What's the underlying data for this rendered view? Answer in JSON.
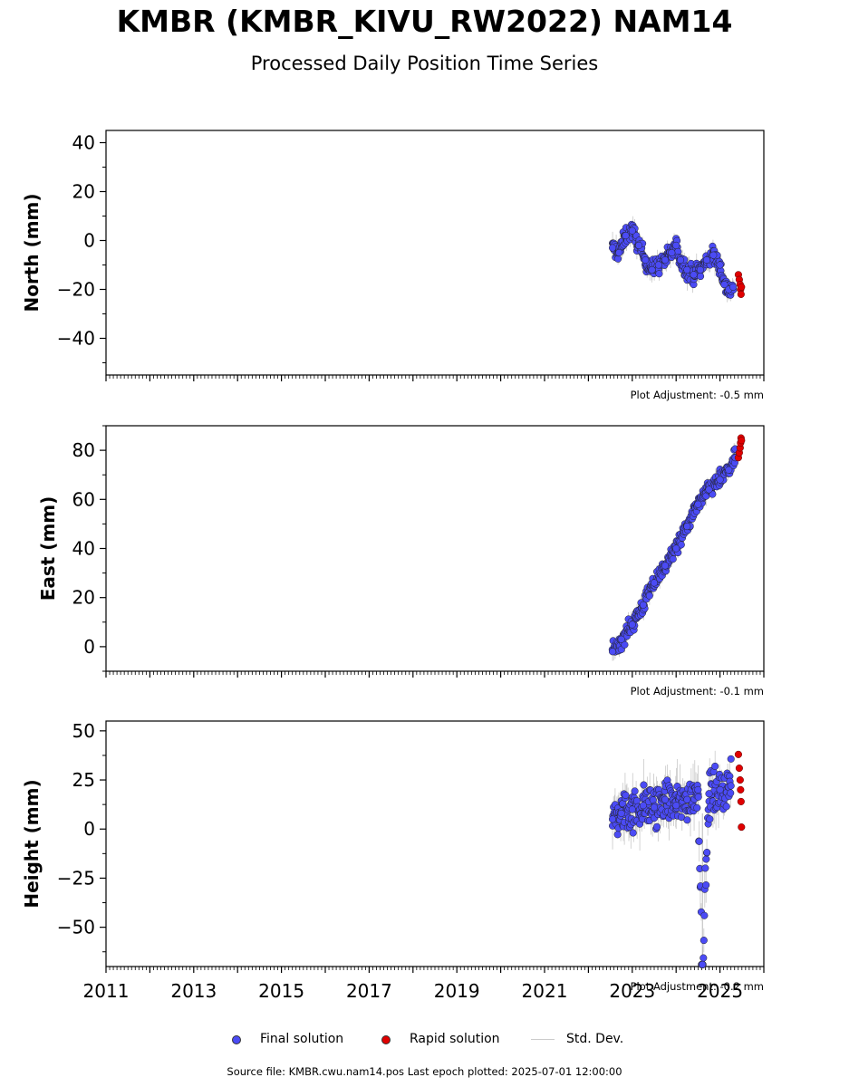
{
  "header": {
    "title": "KMBR (KMBR_KIVU_RW2022) NAM14",
    "subtitle": "Processed Daily Position Time Series"
  },
  "colors": {
    "final": "#4b4bf5",
    "rapid": "#e00000",
    "stddev": "#bbbbbb",
    "marker_edge": "#222222"
  },
  "chart_data": [
    {
      "type": "scatter",
      "ylabel": "North (mm)",
      "xlim": [
        2011.0,
        2026.0
      ],
      "ylim": [
        -55,
        45
      ],
      "yticks": [
        -40,
        -20,
        0,
        20,
        40
      ],
      "adjustment": "Plot Adjustment: -0.5 mm",
      "final_series": {
        "name": "Final solution",
        "x": [
          2022.55,
          2022.7,
          2022.85,
          2023.0,
          2023.15,
          2023.3,
          2023.45,
          2023.6,
          2023.75,
          2023.9,
          2024.0,
          2024.1,
          2024.25,
          2024.4,
          2024.55,
          2024.7,
          2024.85,
          2025.0,
          2025.1,
          2025.2,
          2025.3
        ],
        "y": [
          -3,
          -5,
          2,
          4,
          -2,
          -8,
          -12,
          -10,
          -8,
          -5,
          -2,
          -8,
          -12,
          -14,
          -12,
          -8,
          -6,
          -10,
          -18,
          -20,
          -19
        ]
      },
      "rapid_series": {
        "name": "Rapid solution",
        "x": [
          2025.42,
          2025.44,
          2025.46,
          2025.47,
          2025.48,
          2025.49
        ],
        "y": [
          -14,
          -16,
          -18,
          -20,
          -22,
          -19
        ]
      }
    },
    {
      "type": "scatter",
      "ylabel": "East (mm)",
      "xlim": [
        2011.0,
        2026.0
      ],
      "ylim": [
        -10,
        90
      ],
      "yticks": [
        0,
        20,
        40,
        60,
        80
      ],
      "adjustment": "Plot Adjustment: -0.1 mm",
      "final_series": {
        "name": "Final solution",
        "x": [
          2022.55,
          2022.75,
          2023.0,
          2023.25,
          2023.5,
          2023.75,
          2024.0,
          2024.25,
          2024.5,
          2024.75,
          2025.0,
          2025.2,
          2025.35
        ],
        "y": [
          -2,
          3,
          9,
          17,
          26,
          33,
          40,
          49,
          58,
          64,
          68,
          72,
          77
        ]
      },
      "rapid_series": {
        "name": "Rapid solution",
        "x": [
          2025.42,
          2025.44,
          2025.46,
          2025.47,
          2025.48,
          2025.49
        ],
        "y": [
          77,
          79,
          81,
          83,
          85,
          84
        ]
      }
    },
    {
      "type": "scatter",
      "ylabel": "Height (mm)",
      "xlim": [
        2011.0,
        2026.0
      ],
      "ylim": [
        -70,
        55
      ],
      "yticks": [
        -50,
        -25,
        0,
        25,
        50
      ],
      "xticks": [
        "2011",
        "2013",
        "2015",
        "2017",
        "2019",
        "2021",
        "2023",
        "2025"
      ],
      "adjustment": "Plot Adjustment: -0.2 mm",
      "final_series": {
        "name": "Final solution",
        "x": [
          2022.55,
          2022.75,
          2023.0,
          2023.25,
          2023.5,
          2023.75,
          2024.0,
          2024.25,
          2024.5,
          2024.6,
          2024.75,
          2025.0,
          2025.25
        ],
        "y": [
          5,
          8,
          10,
          12,
          11,
          15,
          12,
          15,
          20,
          -69,
          18,
          20,
          22
        ]
      },
      "rapid_series": {
        "name": "Rapid solution",
        "x": [
          2025.42,
          2025.44,
          2025.46,
          2025.47,
          2025.48,
          2025.49
        ],
        "y": [
          38,
          31,
          25,
          20,
          14,
          1
        ]
      }
    }
  ],
  "legend": {
    "final_label": "Final solution",
    "rapid_label": "Rapid solution",
    "stddev_label": "Std. Dev."
  },
  "footer": {
    "text": "Source file: KMBR.cwu.nam14.pos  Last epoch plotted: 2025-07-01 12:00:00"
  }
}
